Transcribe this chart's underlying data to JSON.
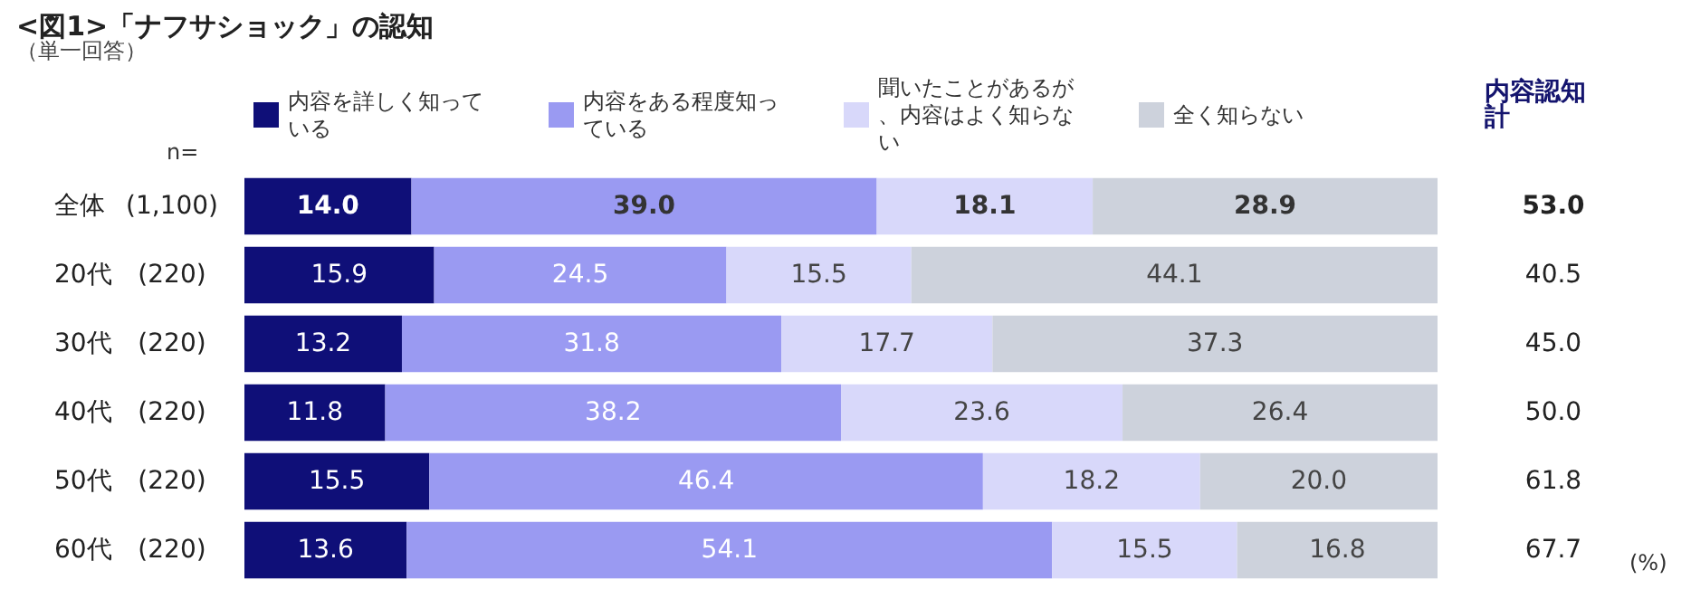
{
  "chart_data": {
    "type": "bar",
    "orientation": "horizontal",
    "stacked": true,
    "title": "<図1>「ナフサショック」の認知",
    "subtitle": "（単一回答）",
    "categories": [
      "全体",
      "20代",
      "30代",
      "40代",
      "50代",
      "60代"
    ],
    "series": [
      {
        "name": "内容を詳しく知っている",
        "color": "#0f0f78",
        "values": [
          14.0,
          15.9,
          13.2,
          11.8,
          15.5,
          13.6
        ],
        "value_labels": [
          "14.0",
          "15.9",
          "13.2",
          "11.8",
          "15.5",
          "13.6"
        ]
      },
      {
        "name": "内容をある程度知っている",
        "color": "#9a9af2",
        "values": [
          39.0,
          24.5,
          31.8,
          38.2,
          46.4,
          54.1
        ],
        "value_labels": [
          "39.0",
          "24.5",
          "31.8",
          "38.2",
          "46.4",
          "54.1"
        ]
      },
      {
        "name": "聞いたことがあるが、内容はよく知らない",
        "color": "#d8d8fa",
        "values": [
          18.1,
          15.5,
          17.7,
          23.6,
          18.2,
          15.5
        ],
        "value_labels": [
          "18.1",
          "15.5",
          "17.7",
          "23.6",
          "18.2",
          "15.5"
        ]
      },
      {
        "name": "全く知らない",
        "color": "#cdd2dc",
        "values": [
          28.9,
          44.1,
          37.3,
          26.4,
          20.0,
          16.8
        ],
        "value_labels": [
          "28.9",
          "44.1",
          "37.3",
          "26.4",
          "20.0",
          "16.8"
        ]
      }
    ],
    "xlim": [
      0,
      100
    ],
    "legend": "top",
    "grid": false,
    "tick_labels": "y",
    "annotations": [
      "n=",
      "内容認知計",
      "(%)",
      "(1,100)",
      "(220)",
      "(220)",
      "(220)",
      "(220)",
      "(220)",
      "53.0",
      "40.5",
      "45.0",
      "50.0",
      "61.8",
      "67.7"
    ]
  }
}
